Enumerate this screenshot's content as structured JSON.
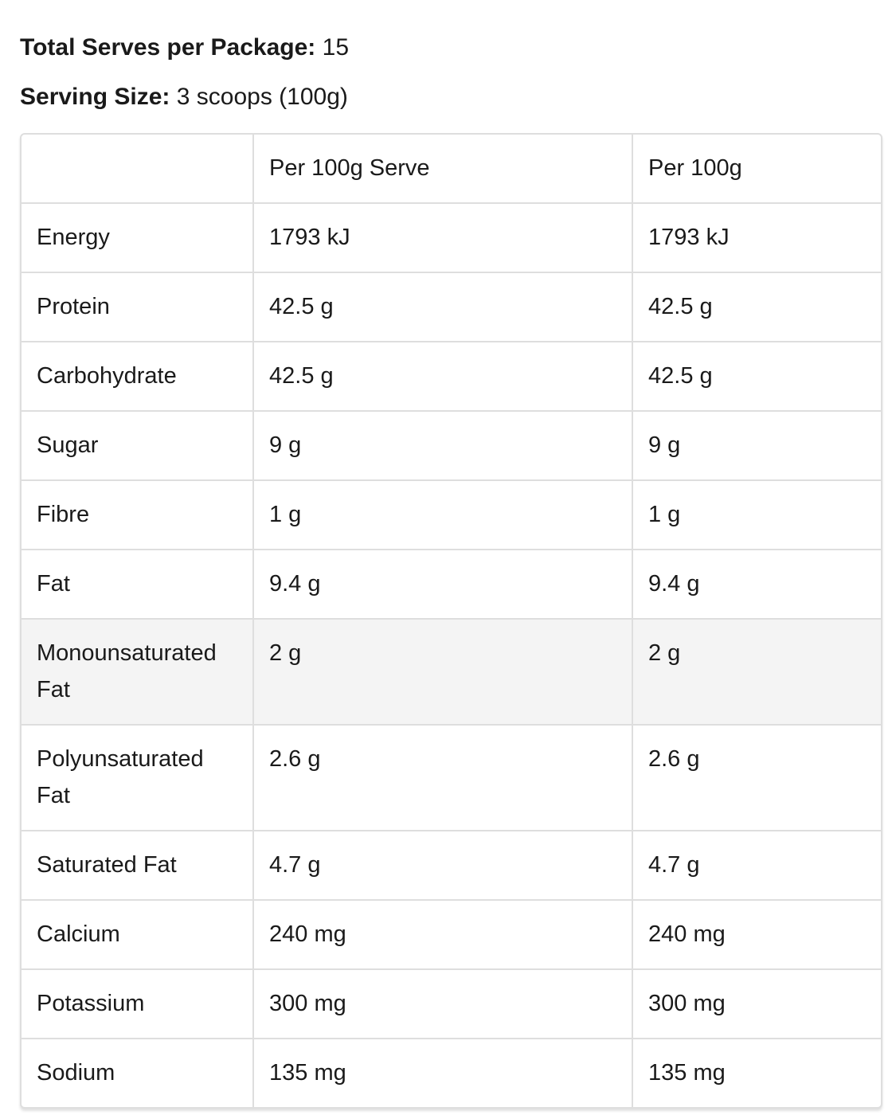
{
  "summary": {
    "serves_label": "Total Serves per Package:",
    "serves_value": "15",
    "size_label": "Serving Size:",
    "size_value": "3 scoops (100g)"
  },
  "table": {
    "headers": [
      "",
      "Per 100g Serve",
      "Per 100g"
    ],
    "rows": [
      {
        "nutrient": "Energy",
        "per_serve": "1793 kJ",
        "per_100g": "1793 kJ"
      },
      {
        "nutrient": "Protein",
        "per_serve": "42.5 g",
        "per_100g": "42.5 g"
      },
      {
        "nutrient": "Carbohydrate",
        "per_serve": "42.5 g",
        "per_100g": "42.5 g"
      },
      {
        "nutrient": "Sugar",
        "per_serve": "9 g",
        "per_100g": "9 g"
      },
      {
        "nutrient": "Fibre",
        "per_serve": "1 g",
        "per_100g": "1 g"
      },
      {
        "nutrient": "Fat",
        "per_serve": "9.4 g",
        "per_100g": "9.4 g"
      },
      {
        "nutrient": "Monounsaturated Fat",
        "per_serve": "2 g",
        "per_100g": "2 g"
      },
      {
        "nutrient": "Polyunsaturated Fat",
        "per_serve": "2.6 g",
        "per_100g": "2.6 g"
      },
      {
        "nutrient": "Saturated Fat",
        "per_serve": "4.7 g",
        "per_100g": "4.7 g"
      },
      {
        "nutrient": "Calcium",
        "per_serve": "240 mg",
        "per_100g": "240 mg"
      },
      {
        "nutrient": "Potassium",
        "per_serve": "300 mg",
        "per_100g": "300 mg"
      },
      {
        "nutrient": "Sodium",
        "per_serve": "135 mg",
        "per_100g": "135 mg"
      }
    ],
    "shaded_row_color": "#f4f4f4",
    "border_color": "#dedede"
  }
}
